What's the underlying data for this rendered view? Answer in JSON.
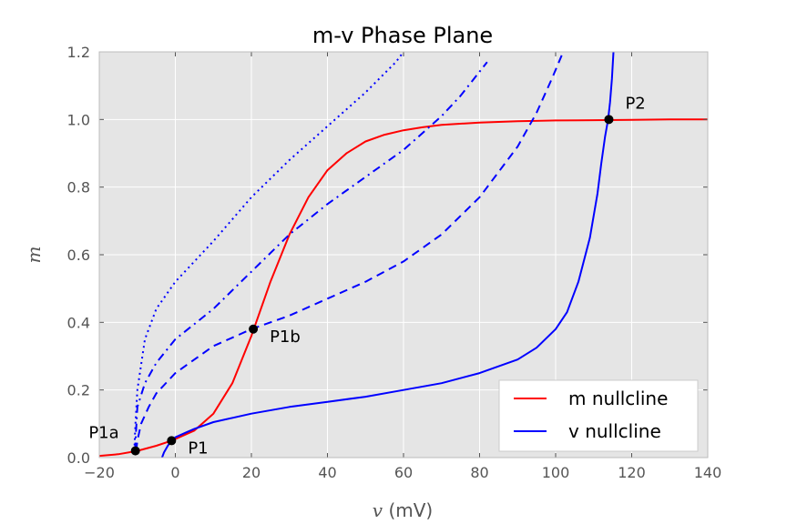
{
  "chart_data": {
    "type": "line",
    "title": "m-v Phase Plane",
    "xlabel_var": "v",
    "xlabel_unit": "(mV)",
    "ylabel": "m",
    "xlim": [
      -20,
      140
    ],
    "ylim": [
      0.0,
      1.2
    ],
    "xticks": [
      -20,
      0,
      20,
      40,
      60,
      80,
      100,
      120,
      140
    ],
    "yticks": [
      0.0,
      0.2,
      0.4,
      0.6,
      0.8,
      1.0,
      1.2
    ],
    "xtick_labels": [
      "−20",
      "0",
      "20",
      "40",
      "60",
      "80",
      "100",
      "120",
      "140"
    ],
    "ytick_labels": [
      "0.0",
      "0.2",
      "0.4",
      "0.6",
      "0.8",
      "1.0",
      "1.2"
    ],
    "grid": true,
    "legend_position": "lower-right",
    "colors": {
      "m_nullcline": "#ff0000",
      "v_nullcline": "#0000ff",
      "plot_bg": "#e5e5e5",
      "grid": "#ffffff"
    },
    "series": [
      {
        "name": "m nullcline",
        "style": "solid",
        "color": "#ff0000",
        "x": [
          -20,
          -15,
          -10,
          -5,
          -1,
          5,
          10,
          15,
          20,
          25,
          30,
          35,
          40,
          45,
          50,
          55,
          60,
          65,
          70,
          80,
          90,
          100,
          110,
          120,
          130,
          140
        ],
        "y": [
          0.005,
          0.01,
          0.02,
          0.035,
          0.05,
          0.08,
          0.13,
          0.22,
          0.36,
          0.52,
          0.66,
          0.77,
          0.85,
          0.9,
          0.935,
          0.955,
          0.968,
          0.977,
          0.984,
          0.991,
          0.995,
          0.997,
          0.998,
          0.999,
          1.0,
          1.0
        ]
      },
      {
        "name": "v nullcline",
        "style": "solid",
        "color": "#0000ff",
        "x": [
          -3.5,
          -3,
          -2,
          -1,
          0,
          3,
          5,
          10,
          20,
          30,
          40,
          50,
          60,
          70,
          80,
          90,
          95,
          100,
          103,
          106,
          109,
          111,
          112,
          113,
          113.8,
          114.3,
          114.8,
          115.2
        ],
        "y": [
          0.0,
          0.015,
          0.035,
          0.05,
          0.06,
          0.075,
          0.085,
          0.105,
          0.13,
          0.15,
          0.165,
          0.18,
          0.2,
          0.22,
          0.25,
          0.29,
          0.325,
          0.38,
          0.43,
          0.52,
          0.65,
          0.78,
          0.87,
          0.95,
          1.0,
          1.05,
          1.12,
          1.2
        ]
      },
      {
        "name": "",
        "style": "dashed",
        "color": "#0000ff",
        "x": [
          -10.3,
          -10,
          -9,
          -7,
          -5,
          0,
          5,
          10,
          20,
          30,
          40,
          50,
          60,
          70,
          80,
          90,
          95,
          99,
          102
        ],
        "y": [
          0.02,
          0.05,
          0.1,
          0.15,
          0.19,
          0.25,
          0.29,
          0.33,
          0.38,
          0.42,
          0.47,
          0.52,
          0.58,
          0.66,
          0.77,
          0.92,
          1.02,
          1.12,
          1.2
        ]
      },
      {
        "name": "",
        "style": "dashdot",
        "color": "#0000ff",
        "x": [
          -10.6,
          -10,
          -8,
          -5,
          0,
          10,
          20,
          30,
          40,
          50,
          60,
          65,
          70,
          75,
          82
        ],
        "y": [
          0.02,
          0.15,
          0.22,
          0.28,
          0.35,
          0.44,
          0.55,
          0.66,
          0.75,
          0.83,
          0.91,
          0.96,
          1.01,
          1.07,
          1.17
        ]
      },
      {
        "name": "",
        "style": "dotted",
        "color": "#0000ff",
        "x": [
          -10.8,
          -10.5,
          -10,
          -8,
          -5,
          0,
          10,
          20,
          30,
          40,
          50,
          58,
          60
        ],
        "y": [
          0.02,
          0.1,
          0.2,
          0.35,
          0.44,
          0.52,
          0.64,
          0.77,
          0.88,
          0.98,
          1.08,
          1.17,
          1.2
        ]
      }
    ],
    "points": [
      {
        "label": "P1a",
        "x": -10.5,
        "y": 0.02,
        "label_side": "left"
      },
      {
        "label": "P1",
        "x": -1,
        "y": 0.05,
        "label_side": "right"
      },
      {
        "label": "P1b",
        "x": 20.5,
        "y": 0.38,
        "label_side": "right"
      },
      {
        "label": "P2",
        "x": 114,
        "y": 1.0,
        "label_side": "right"
      }
    ],
    "legend": [
      {
        "label": "m nullcline",
        "color": "#ff0000"
      },
      {
        "label": "v nullcline",
        "color": "#0000ff"
      }
    ]
  }
}
